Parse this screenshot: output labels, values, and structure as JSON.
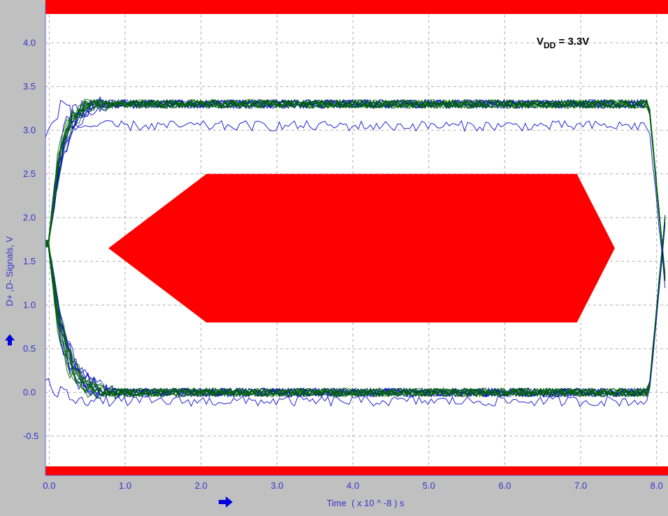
{
  "chart_data": {
    "type": "line",
    "title": "",
    "xlabel": "Time  ( x 10 ^ -8 ) s",
    "ylabel": "D+ ,D- Signals, V",
    "xlim": [
      -0.05,
      8.15
    ],
    "ylim": [
      -0.95,
      4.45
    ],
    "x_ticks": [
      0.0,
      1.0,
      2.0,
      3.0,
      4.0,
      5.0,
      6.0,
      7.0,
      8.0
    ],
    "x_tick_labels": [
      "0.0",
      "1.0",
      "2.0",
      "3.0",
      "4.0",
      "5.0",
      "6.0",
      "7.0",
      "8.0"
    ],
    "y_ticks": [
      -0.5,
      0.0,
      0.5,
      1.0,
      1.5,
      2.0,
      2.5,
      3.0,
      3.5,
      4.0
    ],
    "y_tick_labels": [
      "-0.5",
      "0.0",
      "0.5",
      "1.0",
      "1.5",
      "2.0",
      "2.5",
      "3.0",
      "3.5",
      "4.0"
    ],
    "grid": true,
    "annotation": {
      "label_main": "V",
      "label_sub": "DD",
      "label_rest": " = 3.3V"
    },
    "eye_mask": {
      "color": "#ff0000",
      "polygon": [
        [
          0.78,
          1.65
        ],
        [
          2.07,
          2.5
        ],
        [
          6.95,
          2.5
        ],
        [
          7.45,
          1.65
        ],
        [
          6.95,
          0.8
        ],
        [
          2.07,
          0.8
        ]
      ]
    },
    "limit_bands": {
      "color": "#ff0000",
      "upper_above": 4.45,
      "lower_below": -0.95
    },
    "series": [
      {
        "color": "#0000cc",
        "high": 3.3,
        "low": 0.0
      },
      {
        "color": "#006600",
        "high": 3.3,
        "low": 0.0
      }
    ],
    "colors": {
      "axis_text": "#3333cc",
      "grid": "#b0b0b0",
      "plot_bg": "#ffffff",
      "frame_bg": "#c0c0c0",
      "arrows": "#0000dd"
    },
    "icons": {
      "y_axis": "up-arrow-icon",
      "x_axis": "right-arrow-icon"
    }
  }
}
